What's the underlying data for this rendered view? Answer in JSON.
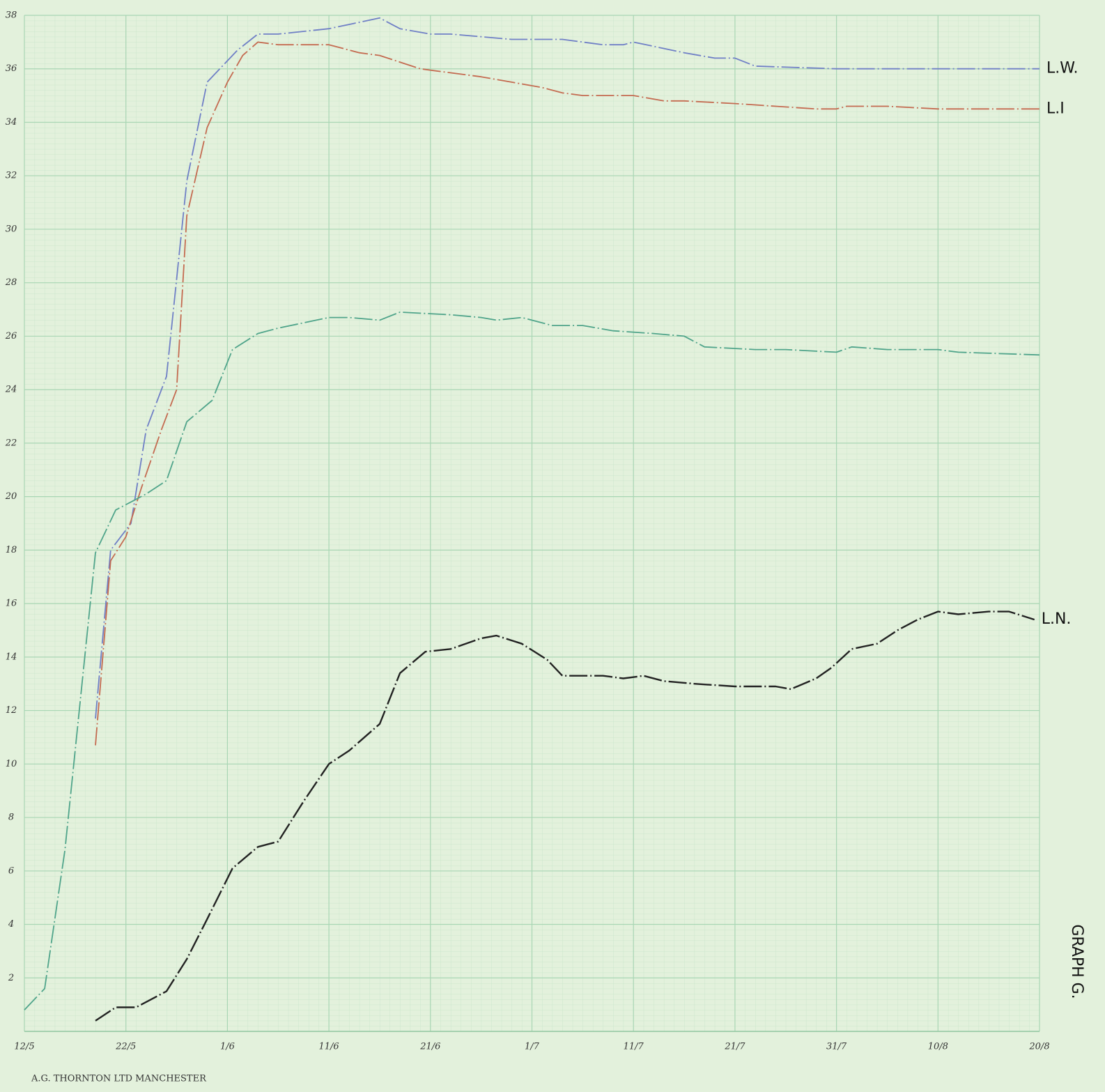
{
  "chart_data": {
    "type": "line",
    "annotations": [
      "GRAPH G.",
      "A.G. THORNTON LTD MANCHESTER"
    ],
    "xlim": [
      0,
      100
    ],
    "xticks": [
      {
        "value": 0,
        "label": "12/5"
      },
      {
        "value": 10,
        "label": "22/5"
      },
      {
        "value": 20,
        "label": "1/6"
      },
      {
        "value": 30,
        "label": "11/6"
      },
      {
        "value": 40,
        "label": "21/6"
      },
      {
        "value": 50,
        "label": "1/7"
      },
      {
        "value": 60,
        "label": "11/7"
      },
      {
        "value": 70,
        "label": "21/7"
      },
      {
        "value": 80,
        "label": "31/7"
      },
      {
        "value": 90,
        "label": "10/8"
      },
      {
        "value": 100,
        "label": "20/8"
      }
    ],
    "ylim": [
      0,
      38
    ],
    "yticks": [
      2,
      4,
      6,
      8,
      10,
      12,
      14,
      16,
      18,
      20,
      22,
      24,
      26,
      28,
      30,
      32,
      34,
      36,
      38
    ],
    "grid": true,
    "series": [
      {
        "name": "L.W.",
        "color": "#6f7fc6",
        "x": [
          7,
          8.5,
          10.5,
          12,
          14,
          16,
          18,
          21,
          23,
          25,
          30,
          35,
          37,
          40,
          42,
          48,
          53,
          57,
          59,
          60,
          65,
          68,
          70,
          72,
          80,
          100
        ],
        "values": [
          11.7,
          18,
          19,
          22.5,
          24.5,
          31.8,
          35.5,
          36.7,
          37.3,
          37.3,
          37.5,
          37.9,
          37.5,
          37.3,
          37.3,
          37.1,
          37.1,
          36.9,
          36.9,
          37.0,
          36.6,
          36.4,
          36.4,
          36.1,
          36.0,
          36.0
        ]
      },
      {
        "name": "L.I",
        "color": "#c46a50",
        "x": [
          7,
          8.5,
          10,
          11.5,
          13.5,
          15,
          16,
          18,
          20,
          21.5,
          23,
          25,
          30,
          33,
          35,
          39,
          41,
          45,
          48,
          51,
          53,
          55,
          60,
          63,
          65,
          70,
          74,
          78,
          80,
          81,
          85,
          90,
          100
        ],
        "values": [
          10.7,
          17.6,
          18.5,
          20.3,
          22.5,
          24,
          30.5,
          33.8,
          35.5,
          36.5,
          37.0,
          36.9,
          36.9,
          36.6,
          36.5,
          36.0,
          35.9,
          35.7,
          35.5,
          35.3,
          35.1,
          35.0,
          35.0,
          34.8,
          34.8,
          34.7,
          34.6,
          34.5,
          34.5,
          34.6,
          34.6,
          34.5,
          34.5
        ]
      },
      {
        "color": "#4fa48a",
        "x": [
          0,
          2,
          4,
          7,
          9,
          10.5,
          12,
          14,
          16,
          18.5,
          20.5,
          23,
          25,
          30,
          32,
          35,
          37,
          42,
          45,
          46.5,
          49,
          52,
          55,
          58,
          62,
          65,
          67,
          72,
          75,
          80,
          81.5,
          85,
          90,
          92,
          100
        ],
        "values": [
          0.8,
          1.6,
          6.8,
          17.9,
          19.5,
          19.8,
          20.1,
          20.6,
          22.8,
          23.6,
          25.5,
          26.1,
          26.3,
          26.7,
          26.7,
          26.6,
          26.9,
          26.8,
          26.7,
          26.6,
          26.7,
          26.4,
          26.4,
          26.2,
          26.1,
          26.0,
          25.6,
          25.5,
          25.5,
          25.4,
          25.6,
          25.5,
          25.5,
          25.4,
          25.3
        ]
      },
      {
        "name": "L.N.",
        "color": "#222222",
        "x": [
          7,
          9,
          11,
          14,
          16,
          18,
          20.5,
          23,
          25,
          27.5,
          30,
          32,
          35,
          37,
          39.5,
          42,
          45,
          46.5,
          49,
          51.5,
          53,
          57,
          59,
          61,
          63,
          66,
          70,
          74,
          75.5,
          78,
          79.5,
          81.5,
          84,
          86,
          88,
          90,
          92,
          95,
          97,
          99.5
        ],
        "values": [
          0.4,
          0.9,
          0.9,
          1.5,
          2.7,
          4.2,
          6.1,
          6.9,
          7.1,
          8.6,
          10.0,
          10.5,
          11.5,
          13.4,
          14.2,
          14.3,
          14.7,
          14.8,
          14.5,
          13.9,
          13.3,
          13.3,
          13.2,
          13.3,
          13.1,
          13.0,
          12.9,
          12.9,
          12.8,
          13.2,
          13.6,
          14.3,
          14.5,
          15.0,
          15.4,
          15.7,
          15.6,
          15.7,
          15.7,
          15.4
        ]
      }
    ]
  }
}
